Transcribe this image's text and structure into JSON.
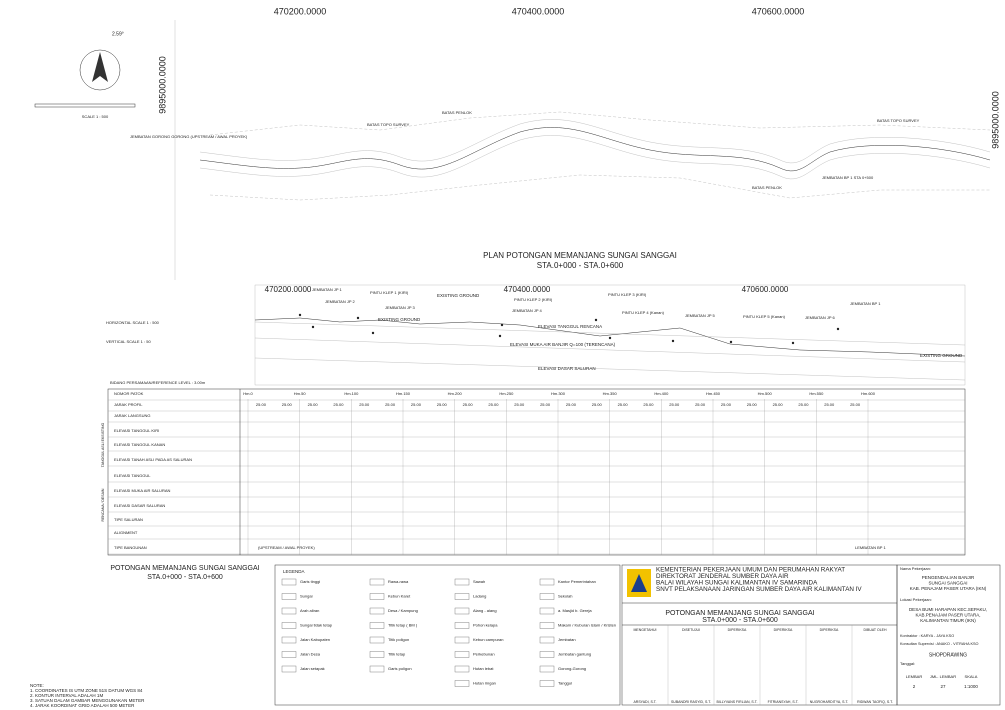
{
  "grid": {
    "top": [
      "470200.0000",
      "470400.0000",
      "470600.0000"
    ],
    "left": "9895000.0000",
    "right": "9895000.0000"
  },
  "plan": {
    "title": "PLAN POTONGAN MEMANJANG SUNGAI SANGGAI",
    "subtitle": "STA.0+000 - STA.0+600",
    "scale": "SCALE 1 : 500",
    "north": "2.59°",
    "annotations": [
      "JEMBATAN GORONG GORONG (UPSTREAM / AWAL PROYEK)",
      "BATAS TOPO SURVEY",
      "BATAS PENLOK",
      "BATAS PENLOK",
      "BATAS TOPO SURVEY",
      "JEMBATAN BP 1 STA 0+500"
    ]
  },
  "profile": {
    "grid": [
      "470200.0000",
      "470400.0000",
      "470600.0000"
    ],
    "horizontal_scale": "HORIZONTAL SCALE 1 : 500",
    "vertical_scale": "VERTICAL SCALE 1 : 50",
    "reference": "BIDANG PERSAMAAN/REFERENCE LEVEL : 3.00m",
    "lines": [
      "EXISTING GROUND",
      "ELEVASI TANGGUL RENCANA",
      "ELEVASI MUKA AIR BANJIR Q=100 (TERENCANA)",
      "ELEVASI DASAR SALURAN",
      "EXISTING GROUND",
      "EXISTING GROUND"
    ],
    "structures": [
      "JEMBATAN JP 1",
      "JEMBATAN JP 2",
      "PINTU KLEP 1 (KIRI)",
      "JEMBATAN JP 3",
      "PINTU KLEP 2 (KIRI)",
      "JEMBATAN JP 4",
      "PINTU KLEP 3 (KIRI)",
      "PINTU KLEP 4 (Kanan)",
      "JEMBATAN JP 5",
      "PINTU KLEP 5 (Kanan)",
      "JEMBATAN JP 6",
      "JEMBATAN BP 1"
    ]
  },
  "table": {
    "rows": [
      "NOMOR PATOK",
      "JARAK PROFIL",
      "JARAK LANGSUNG",
      "ELEVASI TANGGUL KIRI",
      "ELEVASI TANGGUL KANAN",
      "ELEVASI TANAH ASLI PADA AS SALURAN",
      "ELEVASI TANGGUL",
      "ELEVASI MUKA AIR SALURAN",
      "ELEVASI DASAR SALURAN",
      "TIPE SALURAN",
      "ALIGNMENT",
      "TIPE BANGUNAN"
    ],
    "groups": [
      "TANGGUL ASLI EKSISTING",
      "RENCANA / DESAIN"
    ],
    "patok": [
      "Hm.0",
      "Hm.50",
      "Hm.100",
      "Hm.150",
      "Hm.200",
      "Hm.250",
      "Hm.300",
      "Hm.350",
      "Hm.400",
      "Hm.450",
      "Hm.500",
      "Hm.550",
      "Hm.600"
    ],
    "jarak": [
      "25.00",
      "25.00",
      "25.00",
      "25.00",
      "25.00",
      "25.00",
      "25.00",
      "25.00",
      "25.00",
      "25.00",
      "25.00",
      "25.00",
      "25.00",
      "25.00",
      "25.00",
      "25.00",
      "25.00",
      "25.00",
      "25.00",
      "25.00",
      "25.00",
      "25.00",
      "25.00",
      "25.00"
    ],
    "tipe_bangunan": [
      "(UPSTREAM / AWAL PROYEK)",
      "LEMBATAN BP 1"
    ]
  },
  "bottom_title": {
    "title": "POTONGAN MEMANJANG SUNGAI SANGGAI",
    "subtitle": "STA.0+000 - STA.0+600"
  },
  "legend": {
    "title": "LEGENDA",
    "items": [
      "Garis tinggi",
      "Sungai",
      "Arah aliran",
      "Sungai tidak tetap",
      "Jalan Kabupaten",
      "Jalan Desa",
      "Jalan setapak",
      "Rawa-rawa",
      "Kebun Karet",
      "Desa / Kampung",
      "Titik tetap ( BM )",
      "Titik poligon",
      "Titik tetap",
      "Garis poligon",
      "Sawah",
      "Ladang",
      "Alang - alang",
      "Pohon kelapa",
      "Kebun campuran",
      "Perkebunan",
      "Hutan lebat",
      "Hutan ringan",
      "Kantor Pemerintahan",
      "Sekolah",
      "a. Masjid  b. Gereja",
      "Makam / Kuburan Islam / Kristen",
      "Jembatan",
      "Jembatan gantung",
      "Gorong-Gorong",
      "Tanggul"
    ]
  },
  "notes": [
    "NOTE:",
    "1. COORDINATES IS UTM ZONE 51S DATUM WGS 84",
    "2. KONTUR INTERVAL ADALAH 1M",
    "3. SATUAN DALAM GAMBAR MENGGUNAKAN METER",
    "4. JARAK KOORDINAT GRID ADALAH 500 METER"
  ],
  "title_block": {
    "agency": [
      "KEMENTERIAN PEKERJAAN UMUM DAN PERUMAHAN RAKYAT",
      "DIREKTORAT JENDERAL SUMBER DAYA AIR",
      "BALAI WILAYAH SUNGAI KALIMANTAN IV SAMARINDA",
      "SNVT PELAKSANAAN JARINGAN SUMBER DAYA AIR KALIMANTAN IV"
    ],
    "drawing_title": "POTONGAN MEMANJANG SUNGAI SANGGAI",
    "drawing_subtitle": "STA.0+000 - STA.0+600",
    "roles": [
      "MENGETAHUI",
      "DISETUJUI",
      "DIPERIKSA",
      "DIPERIKSA",
      "DIPERIKSA",
      "DIBUAT OLEH"
    ],
    "names": [
      "ARSYADI, S.T.",
      "SUBANDRI RASYID, S.T.",
      "BILLYVANS FIRLIAN, S.T.",
      "FITRIANSYAH, S.T.",
      "NUGROHARDITYA, S.T.",
      "RIDWAN TAOFIQ, S.T."
    ],
    "project_label": "Nama Pekerjaan:",
    "project": [
      "PENGENDALIAN BANJIR",
      "SUNGAI SANGGAI",
      "KAB. PENAJAM PASER UTARA (IKN)"
    ],
    "location_label": "Lokasi Pekerjaan:",
    "location": [
      "DESA BUMI HARAPAN KEC.SEPAKU,",
      "KAB.PENAJAM PASER UTARA,",
      "KALIMANTAN TIMUR (IKN)"
    ],
    "contractor": "Kontraktor : KARYA - JAYA KSO",
    "consultant": "Konsultan Supervisi : ANAKO - VITRAHA KSO",
    "status": "SHOPDRAWING",
    "date_label": "Tanggal:",
    "sheet_heads": [
      "LEMBAR",
      "JML. LEMBAR",
      "SKALA"
    ],
    "sheet_values": [
      "2",
      "27",
      "1:1000"
    ]
  }
}
